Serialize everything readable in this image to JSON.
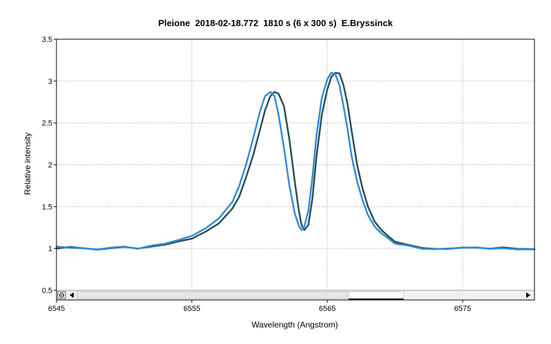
{
  "chart_data": {
    "type": "line",
    "title": "Pleione  2018-02-18.772  1810 s (6 x 300 s)  E.Bryssinck",
    "xlabel": "Wavelength (Angstrom)",
    "ylabel": "Relative intensity",
    "xlim": [
      6545,
      6580.3
    ],
    "ylim": [
      0.5,
      3.5
    ],
    "x_ticks": [
      "6545",
      "6555",
      "6565",
      "6575"
    ],
    "x_tick_values": [
      6545,
      6555,
      6565,
      6575
    ],
    "y_ticks": [
      "0.5",
      "1",
      "1.5",
      "2",
      "2.5",
      "3",
      "3.5"
    ],
    "y_tick_values": [
      0.5,
      1,
      1.5,
      2,
      2.5,
      3,
      3.5
    ],
    "grid": true,
    "legend": "none",
    "colors": {
      "series_dark": "#2d4f4a",
      "series_blue": "#2f8bdb",
      "grid": "#999999",
      "axis": "#000000"
    },
    "series": [
      {
        "color": "#2d4f4a",
        "x": [
          6545,
          6546,
          6547,
          6548,
          6549,
          6550,
          6551,
          6552,
          6553,
          6554,
          6555,
          6556,
          6557,
          6558,
          6558.5,
          6559,
          6559.5,
          6560,
          6560.4,
          6560.8,
          6561.1,
          6561.4,
          6561.8,
          6562.2,
          6562.6,
          6562.9,
          6563.1,
          6563.3,
          6563.6,
          6563.9,
          6564.2,
          6564.6,
          6565,
          6565.3,
          6565.6,
          6565.9,
          6566.2,
          6566.5,
          6566.8,
          6567.2,
          6567.6,
          6568,
          6568.5,
          6569,
          6569.5,
          6570,
          6571,
          6572,
          6573,
          6574,
          6575,
          6576,
          6577,
          6578,
          6579,
          6580.3
        ],
        "y": [
          1.0,
          1.02,
          1.0,
          0.99,
          1.0,
          1.02,
          1.0,
          1.02,
          1.05,
          1.08,
          1.12,
          1.2,
          1.3,
          1.48,
          1.62,
          1.85,
          2.1,
          2.4,
          2.65,
          2.82,
          2.87,
          2.85,
          2.7,
          2.3,
          1.8,
          1.45,
          1.28,
          1.22,
          1.28,
          1.6,
          2.1,
          2.6,
          2.9,
          3.05,
          3.1,
          3.09,
          2.95,
          2.72,
          2.4,
          2.0,
          1.72,
          1.5,
          1.32,
          1.22,
          1.15,
          1.08,
          1.04,
          1.01,
          0.99,
          1.0,
          1.01,
          1.01,
          1.0,
          1.01,
          1.0,
          0.99
        ]
      },
      {
        "color": "#2f8bdb",
        "x": [
          6545,
          6546,
          6547,
          6548,
          6549,
          6550,
          6551,
          6552,
          6553,
          6554,
          6555,
          6556,
          6557,
          6558,
          6558.5,
          6559,
          6559.5,
          6560,
          6560.4,
          6560.8,
          6561.1,
          6561.4,
          6561.8,
          6562.2,
          6562.6,
          6562.9,
          6563.1,
          6563.3,
          6563.6,
          6563.9,
          6564.2,
          6564.6,
          6565,
          6565.3,
          6565.6,
          6565.9,
          6566.2,
          6566.5,
          6566.8,
          6567.2,
          6567.6,
          6568,
          6568.5,
          6569,
          6569.5,
          6570,
          6571,
          6572,
          6573,
          6574,
          6575,
          6576,
          6577,
          6578,
          6579,
          6580.3
        ],
        "y": [
          1.02,
          1.01,
          1.0,
          0.99,
          1.01,
          1.02,
          1.0,
          1.03,
          1.06,
          1.1,
          1.15,
          1.24,
          1.36,
          1.56,
          1.75,
          2.0,
          2.3,
          2.62,
          2.82,
          2.87,
          2.82,
          2.6,
          2.2,
          1.75,
          1.42,
          1.27,
          1.22,
          1.26,
          1.45,
          1.85,
          2.35,
          2.8,
          3.02,
          3.1,
          3.08,
          2.95,
          2.7,
          2.42,
          2.1,
          1.8,
          1.58,
          1.4,
          1.26,
          1.18,
          1.12,
          1.06,
          1.03,
          1.0,
          0.99,
          1.0,
          1.01,
          1.01,
          1.0,
          1.0,
          0.99,
          0.99
        ]
      }
    ]
  }
}
